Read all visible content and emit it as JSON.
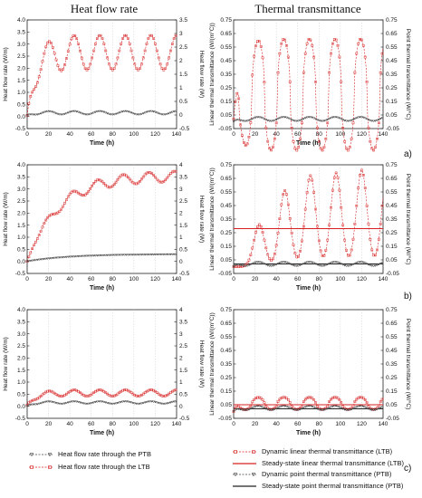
{
  "column_titles": {
    "left": "Heat flow rate",
    "right": "Thermal transmittance"
  },
  "row_labels": [
    "a)",
    "b)",
    "c)"
  ],
  "legend_left": [
    {
      "label": "Heat flow rate through the PTB",
      "color": "#444444",
      "style": "dash-marker"
    },
    {
      "label": "Heat flow rate through the LTB",
      "color": "#d62020",
      "style": "dash-marker"
    }
  ],
  "legend_right": [
    {
      "label": "Dynamic linear thermal transmittance (LTB)",
      "color": "#d62020",
      "style": "dash-marker"
    },
    {
      "label": "Steady-state linear thermal transmittance (LTB)",
      "color": "#d62020",
      "style": "solid"
    },
    {
      "label": "Dynamic point thermal transmittance (PTB)",
      "color": "#444444",
      "style": "dash-marker"
    },
    {
      "label": "Steady-state point thermal transmittance (PTB)",
      "color": "#222222",
      "style": "solid"
    }
  ],
  "chart_data": [
    {
      "id": "a-left",
      "type": "line",
      "xlabel": "Time (h)",
      "ylabel_left": "Heat flow rate (W/m)",
      "ylabel_right": "Heat flow rate (W)",
      "xlim": [
        0,
        140
      ],
      "xticks": [
        "0",
        "20",
        "40",
        "60",
        "80",
        "100",
        "120",
        "140"
      ],
      "ylim": [
        -0.5,
        4.0
      ],
      "yticks_left": [
        "-0.5",
        "0.0",
        "0.5",
        "1.0",
        "1.5",
        "2.0",
        "2.5",
        "3.0",
        "3.5",
        "4.0"
      ],
      "yticks_right": [
        "-0.5",
        "0",
        "0.5",
        "1",
        "1.5",
        "2",
        "2.5",
        "3",
        "3.5"
      ],
      "series": [
        {
          "color": "#d62020",
          "marker": "square",
          "periodic": {
            "start": 0.05,
            "mean": 2.65,
            "amp": 0.72,
            "period": 24,
            "peak": 20,
            "rise": 8
          }
        },
        {
          "color": "#444444",
          "marker": "triangle",
          "periodic": {
            "start": 0.05,
            "mean": 0.15,
            "amp": 0.07,
            "period": 24,
            "peak": 20,
            "rise": 5
          }
        }
      ]
    },
    {
      "id": "a-right",
      "type": "line",
      "xlabel": "Time (h)",
      "ylabel_left": "Linear thermal transmittance (W/(m°C))",
      "ylabel_right": "Point thermal transmittance (W/°C)",
      "xlim": [
        0,
        140
      ],
      "xticks": [
        "0",
        "20",
        "40",
        "60",
        "80",
        "100",
        "120",
        "140"
      ],
      "ylim": [
        -0.05,
        0.75
      ],
      "yticks_left": [
        "-0.05",
        "0.05",
        "0.15",
        "0.25",
        "0.35",
        "0.45",
        "0.55",
        "0.65",
        "0.75"
      ],
      "yticks_right": [
        "-0.05",
        "0.05",
        "0.15",
        "0.25",
        "0.35",
        "0.45",
        "0.55",
        "0.65",
        "0.75"
      ],
      "series": [
        {
          "color": "#d62020",
          "marker": "square",
          "periodic": {
            "start": 0.02,
            "mean": 0.2,
            "amp": 0.41,
            "period": 24,
            "peak": 23,
            "rise": 6,
            "sharp": 3
          }
        },
        {
          "color": "#444444",
          "marker": "triangle",
          "periodic": {
            "start": 0.0,
            "mean": 0.02,
            "amp": 0.015,
            "period": 24,
            "peak": 23,
            "rise": 4
          }
        }
      ]
    },
    {
      "id": "b-left",
      "type": "line",
      "xlabel": "Time (h)",
      "ylabel_left": "Heat flow rate (W/m)",
      "ylabel_right": "Heat flow rate (W)",
      "xlim": [
        0,
        140
      ],
      "xticks": [
        "0",
        "20",
        "40",
        "60",
        "80",
        "100",
        "120",
        "140"
      ],
      "ylim": [
        -0.5,
        4.0
      ],
      "yticks_left": [
        "-0.5",
        "0.0",
        "0.5",
        "1.0",
        "1.5",
        "2.0",
        "2.5",
        "3.0",
        "3.5",
        "4.0"
      ],
      "yticks_right": [
        "-0.5",
        "0",
        "0.5",
        "1",
        "1.5",
        "2",
        "2.5",
        "3",
        "3.5",
        "4"
      ],
      "series": [
        {
          "color": "#d62020",
          "marker": "square",
          "rising": {
            "start": 0.0,
            "end": 3.55,
            "tau": 30,
            "amp": 0.22,
            "period": 24,
            "peak": 18,
            "delay": 6
          }
        },
        {
          "color": "#444444",
          "marker": "triangle",
          "rising": {
            "start": 0.0,
            "end": 0.3,
            "tau": 40,
            "amp": 0.0,
            "period": 24,
            "peak": 18,
            "delay": 6
          }
        }
      ]
    },
    {
      "id": "b-right",
      "type": "line",
      "xlabel": "Time (h)",
      "ylabel_left": "Linear thermal transmittance (W/(m°C))",
      "ylabel_right": "Point thermal transmittance (W/°C)",
      "xlim": [
        0,
        140
      ],
      "xticks": [
        "0",
        "20",
        "40",
        "60",
        "80",
        "100",
        "120",
        "140"
      ],
      "ylim": [
        -0.05,
        0.75
      ],
      "yticks_left": [
        "-0.05",
        "0.05",
        "0.15",
        "0.25",
        "0.35",
        "0.45",
        "0.55",
        "0.65",
        "0.75"
      ],
      "yticks_right": [
        "-0.05",
        "0.05",
        "0.15",
        "0.25",
        "0.35",
        "0.45",
        "0.55",
        "0.65",
        "0.75"
      ],
      "hlines": [
        {
          "y": 0.28,
          "color": "#d62020"
        },
        {
          "y": 0.02,
          "color": "#222222"
        }
      ],
      "series": [
        {
          "color": "#d62020",
          "marker": "square",
          "peaks": {
            "base": 0.0,
            "period": 24,
            "first": 24,
            "heights": [
              0.31,
              0.56,
              0.67,
              0.69,
              0.71,
              0.71
            ],
            "width": 5
          }
        },
        {
          "color": "#444444",
          "marker": "triangle",
          "periodic": {
            "start": 0.0,
            "mean": 0.02,
            "amp": 0.015,
            "period": 24,
            "peak": 23,
            "rise": 4
          }
        }
      ]
    },
    {
      "id": "c-left",
      "type": "line",
      "xlabel": "Time (h)",
      "ylabel_left": "Heat flow rate (W/m)",
      "ylabel_right": "Heat flow rate (W)",
      "xlim": [
        0,
        140
      ],
      "xticks": [
        "0",
        "20",
        "40",
        "60",
        "80",
        "100",
        "120",
        "140"
      ],
      "ylim": [
        -0.5,
        4.0
      ],
      "yticks_left": [
        "-0.5",
        "0.0",
        "0.5",
        "1.0",
        "1.5",
        "2.0",
        "2.5",
        "3.0",
        "3.5",
        "4.0"
      ],
      "yticks_right": [
        "-0.5",
        "0",
        "0.5",
        "1",
        "1.5",
        "2",
        "2.5",
        "3",
        "3.5",
        "4"
      ],
      "series": [
        {
          "color": "#d62020",
          "marker": "square",
          "periodic": {
            "start": 0.05,
            "mean": 0.55,
            "amp": 0.13,
            "period": 24,
            "peak": 20,
            "rise": 8
          }
        },
        {
          "color": "#444444",
          "marker": "triangle",
          "periodic": {
            "start": 0.0,
            "mean": 0.15,
            "amp": 0.05,
            "period": 24,
            "peak": 20,
            "rise": 5
          }
        }
      ]
    },
    {
      "id": "c-right",
      "type": "line",
      "xlabel": "Time (h)",
      "ylabel_left": "Linear thermal transmittance (W/(m°C))",
      "ylabel_right": "Point thermal transmittance (W/°C)",
      "xlim": [
        0,
        140
      ],
      "xticks": [
        "0",
        "20",
        "40",
        "60",
        "80",
        "100",
        "120",
        "140"
      ],
      "ylim": [
        -0.05,
        0.75
      ],
      "yticks_left": [
        "-0.05",
        "0.05",
        "0.15",
        "0.25",
        "0.35",
        "0.45",
        "0.55",
        "0.65",
        "0.75"
      ],
      "yticks_right": [
        "-0.05",
        "0.05",
        "0.15",
        "0.25",
        "0.35",
        "0.45",
        "0.55",
        "0.65",
        "0.75"
      ],
      "hlines": [
        {
          "y": 0.05,
          "color": "#d62020"
        },
        {
          "y": 0.02,
          "color": "#222222"
        }
      ],
      "series": [
        {
          "color": "#d62020",
          "marker": "square",
          "periodic": {
            "start": 0.0,
            "mean": 0.06,
            "amp": 0.045,
            "period": 24,
            "peak": 23,
            "rise": 5,
            "sharp": 2
          }
        },
        {
          "color": "#444444",
          "marker": "triangle",
          "periodic": {
            "start": 0.0,
            "mean": 0.025,
            "amp": 0.015,
            "period": 24,
            "peak": 23,
            "rise": 4
          }
        }
      ]
    }
  ]
}
